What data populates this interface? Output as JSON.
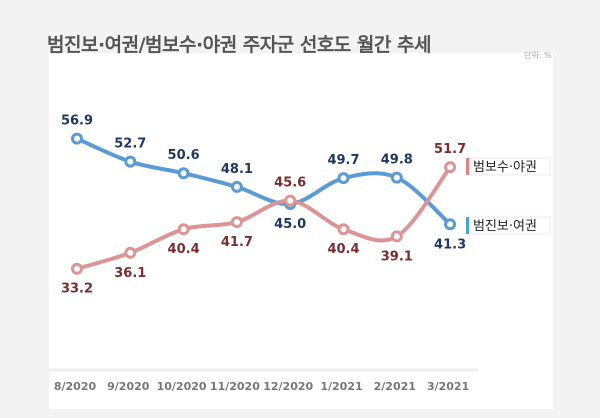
{
  "title": "범진보·여권/범보수·야권 주자군 선호도 월간 추세",
  "unit": "단위: %",
  "chart_data": {
    "type": "line",
    "title": "범진보·여권/범보수·야권 주자군 선호도 월간 추세",
    "categories": [
      "8/2020",
      "9/2020",
      "10/2020",
      "11/2020",
      "12/2020",
      "1/2021",
      "2/2021",
      "3/2021"
    ],
    "series": [
      {
        "name": "범진보·여권",
        "color": "#5b9bd5",
        "label_color": "#1f3864",
        "values": [
          56.9,
          52.7,
          50.6,
          48.1,
          45.0,
          49.7,
          49.8,
          41.3
        ]
      },
      {
        "name": "범보수·야권",
        "color": "#dc9494",
        "label_color": "#7b2c2c",
        "values": [
          33.2,
          36.1,
          40.4,
          41.7,
          45.6,
          40.4,
          39.1,
          51.7
        ]
      }
    ],
    "grid": false,
    "legend": "right"
  }
}
